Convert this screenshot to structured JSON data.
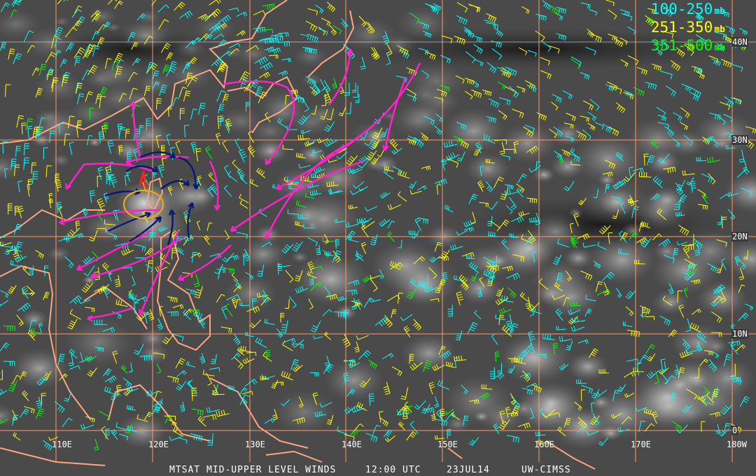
{
  "legend": [
    {
      "range": "100-250",
      "unit": "mb",
      "color": "#00ffff"
    },
    {
      "range": "251-350",
      "unit": "mb",
      "color": "#ffff00"
    },
    {
      "range": "351-500",
      "unit": "mb",
      "color": "#00ff00"
    }
  ],
  "latitude_labels": [
    "40N",
    "30N",
    "20N",
    "10N",
    "0"
  ],
  "longitude_labels": [
    "110E",
    "120E",
    "130E",
    "140E",
    "150E",
    "160E",
    "170E",
    "180W"
  ],
  "footer": {
    "product": "MTSAT MID-UPPER LEVEL WINDS",
    "time": "12:00 UTC",
    "date": "23JUL14",
    "source": "UW-CIMSS"
  },
  "colors": {
    "gridlines": "#ff9966",
    "coastlines": "#ffa580",
    "analysis_arrows_outflow": "#ff22cc",
    "analysis_arrows_inflow": "#0a1a70",
    "storm_circle": "#ffaa00",
    "storm_center": "#ff2020"
  }
}
